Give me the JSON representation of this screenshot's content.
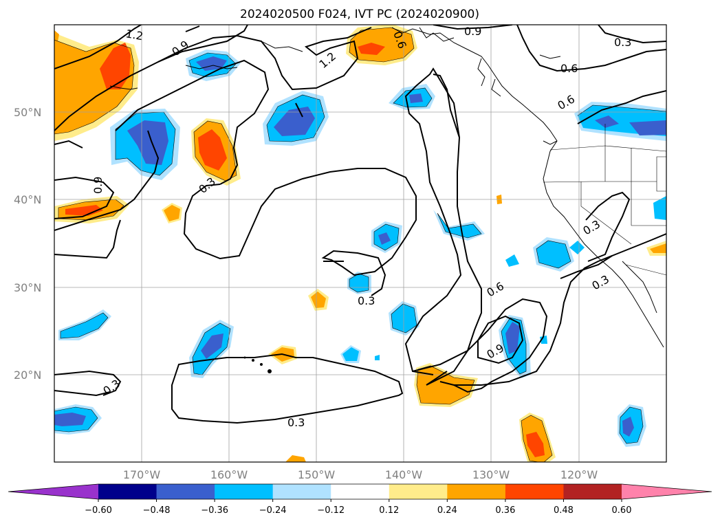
{
  "title": "2024020500 F024, IVT PC (2024020900)",
  "map": {
    "lon_range": [
      -180,
      -110
    ],
    "lat_range": [
      10,
      60
    ],
    "gridlines": true,
    "lat_labels": [
      "50°N",
      "40°N",
      "30°N",
      "20°N"
    ],
    "lon_labels": [
      "170°W",
      "160°W",
      "150°W",
      "140°W",
      "130°W",
      "120°W"
    ],
    "contour_labels": [
      "1.2",
      "0.9",
      "1.2",
      "0.6",
      "0.9",
      "0.3",
      "0.6",
      "0.6",
      "0.3",
      "0.9",
      "0.3",
      "0.3",
      "0.3",
      "0.6",
      "0.9",
      "0.3",
      "0.3"
    ]
  },
  "colorbar": {
    "tick_labels": [
      "−0.60",
      "−0.48",
      "−0.36",
      "−0.24",
      "−0.12",
      "0.12",
      "0.24",
      "0.36",
      "0.48",
      "0.60"
    ],
    "colors": [
      "#9932cc",
      "#00008b",
      "#3a5fcd",
      "#00bfff",
      "#b0e2ff",
      "#ffffff",
      "#ffec8b",
      "#ffa500",
      "#ff4500",
      "#b22222",
      "#ff82ab"
    ]
  }
}
